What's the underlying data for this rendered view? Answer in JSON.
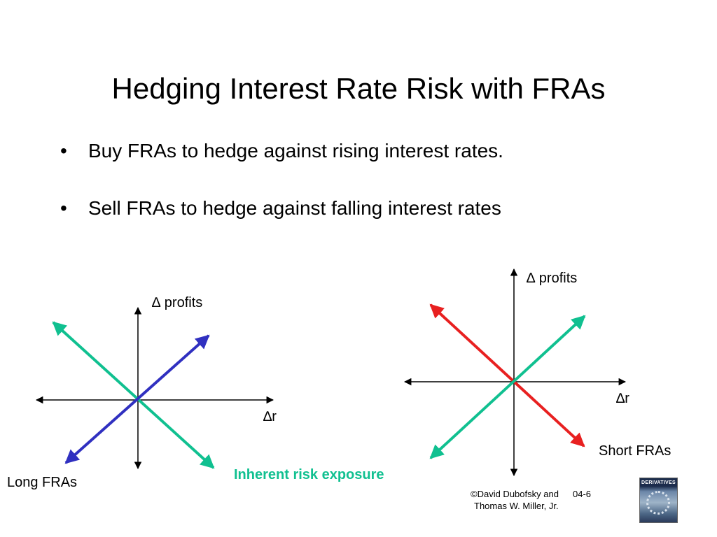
{
  "slide": {
    "title": "Hedging Interest Rate Risk with FRAs",
    "bullet_symbol": "•",
    "bullets": [
      "Buy FRAs to hedge against rising interest rates.",
      "Sell FRAs to hedge against falling interest rates"
    ]
  },
  "left_diagram": {
    "y_axis_label": "∆ profits",
    "x_axis_label": "∆r",
    "line_label": "Long FRAs",
    "lines": [
      {
        "name": "inherent-risk-line",
        "color": "#10c090"
      },
      {
        "name": "long-fra-line",
        "color": "#3030c0"
      }
    ]
  },
  "right_diagram": {
    "y_axis_label": "∆ profits",
    "x_axis_label": "∆r",
    "line_label": "Short FRAs",
    "lines": [
      {
        "name": "short-fra-line",
        "color": "#e82020"
      },
      {
        "name": "inherent-risk-line",
        "color": "#10c090"
      }
    ]
  },
  "center_label": "Inherent risk exposure",
  "footer": {
    "copyright_line1": "©David Dubofsky and",
    "copyright_line2": "Thomas W. Miller, Jr.",
    "slide_number": "04-6"
  },
  "book_cover": {
    "title": "DERIVATIVES",
    "icon": "book-cover-icon"
  }
}
